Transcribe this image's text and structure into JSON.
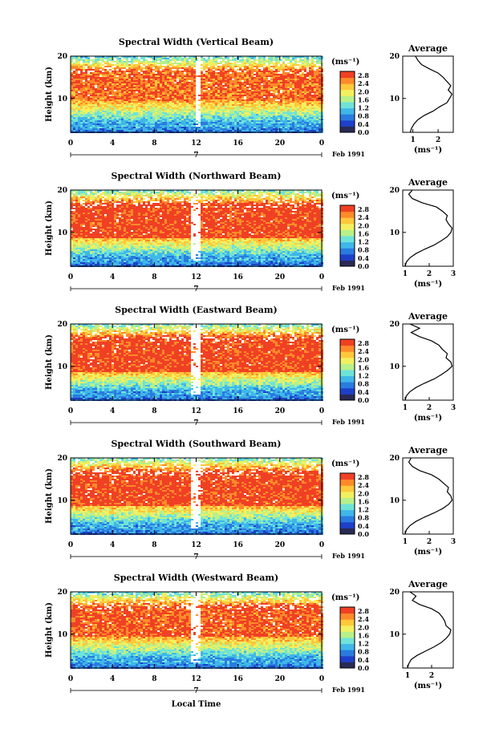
{
  "chart_data": [
    {
      "type": "heatmap",
      "title": "Spectral Width (Vertical Beam)",
      "xlabel": "",
      "ylabel": "Height (km)",
      "x_ticks": [
        "0",
        "4",
        "8",
        "12",
        "16",
        "20",
        "0"
      ],
      "y_ticks": [
        "10",
        "20"
      ],
      "date_marker": "7",
      "date_label": "Feb 1991",
      "colorbar": {
        "unit": "(ms⁻¹)",
        "ticks": [
          "2.8",
          "2.4",
          "2.0",
          "1.6",
          "1.2",
          "0.8",
          "0.4",
          "0.0"
        ]
      },
      "gap_hours": [
        11.8,
        12.3
      ],
      "band": {
        "low": 9.5,
        "high": 16.5,
        "peak": 2.8
      },
      "profile": {
        "title": "Average",
        "xlabel": "(ms⁻¹)",
        "x_ticks": [
          "1",
          "2"
        ],
        "x_tick_values": [
          1,
          2
        ],
        "xlim": [
          0.6,
          2.6
        ],
        "y_ticks": [
          "10",
          "20"
        ],
        "heights": [
          2,
          3,
          4,
          5,
          6,
          7,
          8,
          9,
          10,
          11,
          12,
          13,
          14,
          15,
          16,
          17,
          18,
          19,
          20
        ],
        "values": [
          0.9,
          0.95,
          1.05,
          1.2,
          1.45,
          1.8,
          2.05,
          2.35,
          2.45,
          2.55,
          2.4,
          2.5,
          2.35,
          2.2,
          2.0,
          1.65,
          1.35,
          1.2,
          1.1
        ]
      }
    },
    {
      "type": "heatmap",
      "title": "Spectral Width (Northward Beam)",
      "xlabel": "",
      "ylabel": "Height (km)",
      "x_ticks": [
        "0",
        "4",
        "8",
        "12",
        "16",
        "20",
        "0"
      ],
      "y_ticks": [
        "10",
        "20"
      ],
      "date_marker": "7",
      "date_label": "Feb 1991",
      "colorbar": {
        "unit": "(ms⁻¹)",
        "ticks": [
          "2.8",
          "2.4",
          "2.0",
          "1.6",
          "1.2",
          "0.8",
          "0.4",
          "0.0"
        ]
      },
      "gap_hours": [
        11.3,
        12.3
      ],
      "band": {
        "low": 9.0,
        "high": 16.5,
        "peak": 3.0
      },
      "profile": {
        "title": "Average",
        "xlabel": "(ms⁻¹)",
        "x_ticks": [
          "1",
          "2",
          "3"
        ],
        "x_tick_values": [
          1,
          2,
          3
        ],
        "xlim": [
          0.9,
          3.0
        ],
        "y_ticks": [
          "10",
          "20"
        ],
        "heights": [
          2,
          3,
          4,
          5,
          6,
          7,
          8,
          9,
          10,
          11,
          12,
          13,
          14,
          15,
          16,
          17,
          18,
          19,
          20
        ],
        "values": [
          1.0,
          1.05,
          1.2,
          1.45,
          1.8,
          2.2,
          2.5,
          2.75,
          2.9,
          2.95,
          2.8,
          2.7,
          2.75,
          2.55,
          2.3,
          1.7,
          1.3,
          1.15,
          1.3
        ]
      }
    },
    {
      "type": "heatmap",
      "title": "Spectral Width (Eastward Beam)",
      "xlabel": "",
      "ylabel": "Height (km)",
      "x_ticks": [
        "0",
        "4",
        "8",
        "12",
        "16",
        "20",
        "0"
      ],
      "y_ticks": [
        "10",
        "20"
      ],
      "date_marker": "7",
      "date_label": "Feb 1991",
      "colorbar": {
        "unit": "(ms⁻¹)",
        "ticks": [
          "2.8",
          "2.4",
          "2.0",
          "1.6",
          "1.2",
          "0.8",
          "0.4",
          "0.0"
        ]
      },
      "gap_hours": [
        11.3,
        12.3
      ],
      "band": {
        "low": 9.0,
        "high": 16.5,
        "peak": 3.0
      },
      "profile": {
        "title": "Average",
        "xlabel": "(ms⁻¹)",
        "x_ticks": [
          "1",
          "2",
          "3"
        ],
        "x_tick_values": [
          1,
          2,
          3
        ],
        "xlim": [
          0.9,
          3.0
        ],
        "y_ticks": [
          "10",
          "20"
        ],
        "heights": [
          2,
          3,
          4,
          5,
          6,
          7,
          8,
          9,
          10,
          11,
          12,
          13,
          14,
          15,
          16,
          17,
          18,
          19,
          20
        ],
        "values": [
          1.0,
          1.05,
          1.2,
          1.45,
          1.8,
          2.2,
          2.5,
          2.75,
          2.95,
          2.9,
          2.7,
          2.75,
          2.55,
          2.4,
          2.1,
          1.6,
          1.25,
          1.6,
          1.2
        ]
      }
    },
    {
      "type": "heatmap",
      "title": "Spectral Width (Southward Beam)",
      "xlabel": "",
      "ylabel": "Height (km)",
      "x_ticks": [
        "0",
        "4",
        "8",
        "12",
        "16",
        "20",
        "0"
      ],
      "y_ticks": [
        "10",
        "20"
      ],
      "date_marker": "7",
      "date_label": "Feb 1991",
      "colorbar": {
        "unit": "(ms⁻¹)",
        "ticks": [
          "2.8",
          "2.4",
          "2.0",
          "1.6",
          "1.2",
          "0.8",
          "0.4",
          "0.0"
        ]
      },
      "gap_hours": [
        11.3,
        12.3
      ],
      "band": {
        "low": 9.0,
        "high": 16.5,
        "peak": 3.0
      },
      "profile": {
        "title": "Average",
        "xlabel": "(ms⁻¹)",
        "x_ticks": [
          "1",
          "2",
          "3"
        ],
        "x_tick_values": [
          1,
          2,
          3
        ],
        "xlim": [
          0.9,
          3.0
        ],
        "y_ticks": [
          "10",
          "20"
        ],
        "heights": [
          2,
          3,
          4,
          5,
          6,
          7,
          8,
          9,
          10,
          11,
          12,
          13,
          14,
          15,
          16,
          17,
          18,
          19,
          20
        ],
        "values": [
          1.0,
          1.05,
          1.2,
          1.45,
          1.8,
          2.2,
          2.55,
          2.8,
          2.95,
          2.9,
          2.75,
          2.8,
          2.6,
          2.4,
          2.1,
          1.6,
          1.3,
          1.15,
          1.25
        ]
      }
    },
    {
      "type": "heatmap",
      "title": "Spectral Width (Westward Beam)",
      "xlabel": "Local Time",
      "ylabel": "Height (km)",
      "x_ticks": [
        "0",
        "4",
        "8",
        "12",
        "16",
        "20",
        "0"
      ],
      "y_ticks": [
        "10",
        "20"
      ],
      "date_marker": "7",
      "date_label": "Feb 1991",
      "colorbar": {
        "unit": "(ms⁻¹)",
        "ticks": [
          "2.8",
          "2.4",
          "2.0",
          "1.6",
          "1.2",
          "0.8",
          "0.4",
          "0.0"
        ]
      },
      "gap_hours": [
        11.3,
        12.3
      ],
      "band": {
        "low": 9.5,
        "high": 16.5,
        "peak": 2.9
      },
      "profile": {
        "title": "Average",
        "xlabel": "(ms⁻¹)",
        "x_ticks": [
          "1",
          "2"
        ],
        "x_tick_values": [
          1,
          2
        ],
        "xlim": [
          0.8,
          2.9
        ],
        "y_ticks": [
          "10",
          "20"
        ],
        "heights": [
          2,
          3,
          4,
          5,
          6,
          7,
          8,
          9,
          10,
          11,
          12,
          13,
          14,
          15,
          16,
          17,
          18,
          19,
          20
        ],
        "values": [
          1.0,
          1.05,
          1.15,
          1.4,
          1.75,
          2.1,
          2.4,
          2.6,
          2.75,
          2.8,
          2.6,
          2.55,
          2.45,
          2.3,
          2.0,
          1.5,
          1.2,
          1.35,
          1.1
        ]
      }
    }
  ],
  "colors": {
    "scale": [
      "#2a2a55",
      "#1e40c8",
      "#2a7be0",
      "#3fb7e8",
      "#6fe3d8",
      "#b8f08a",
      "#f2f060",
      "#ffc83a",
      "#ff8a2a",
      "#f04024"
    ]
  }
}
